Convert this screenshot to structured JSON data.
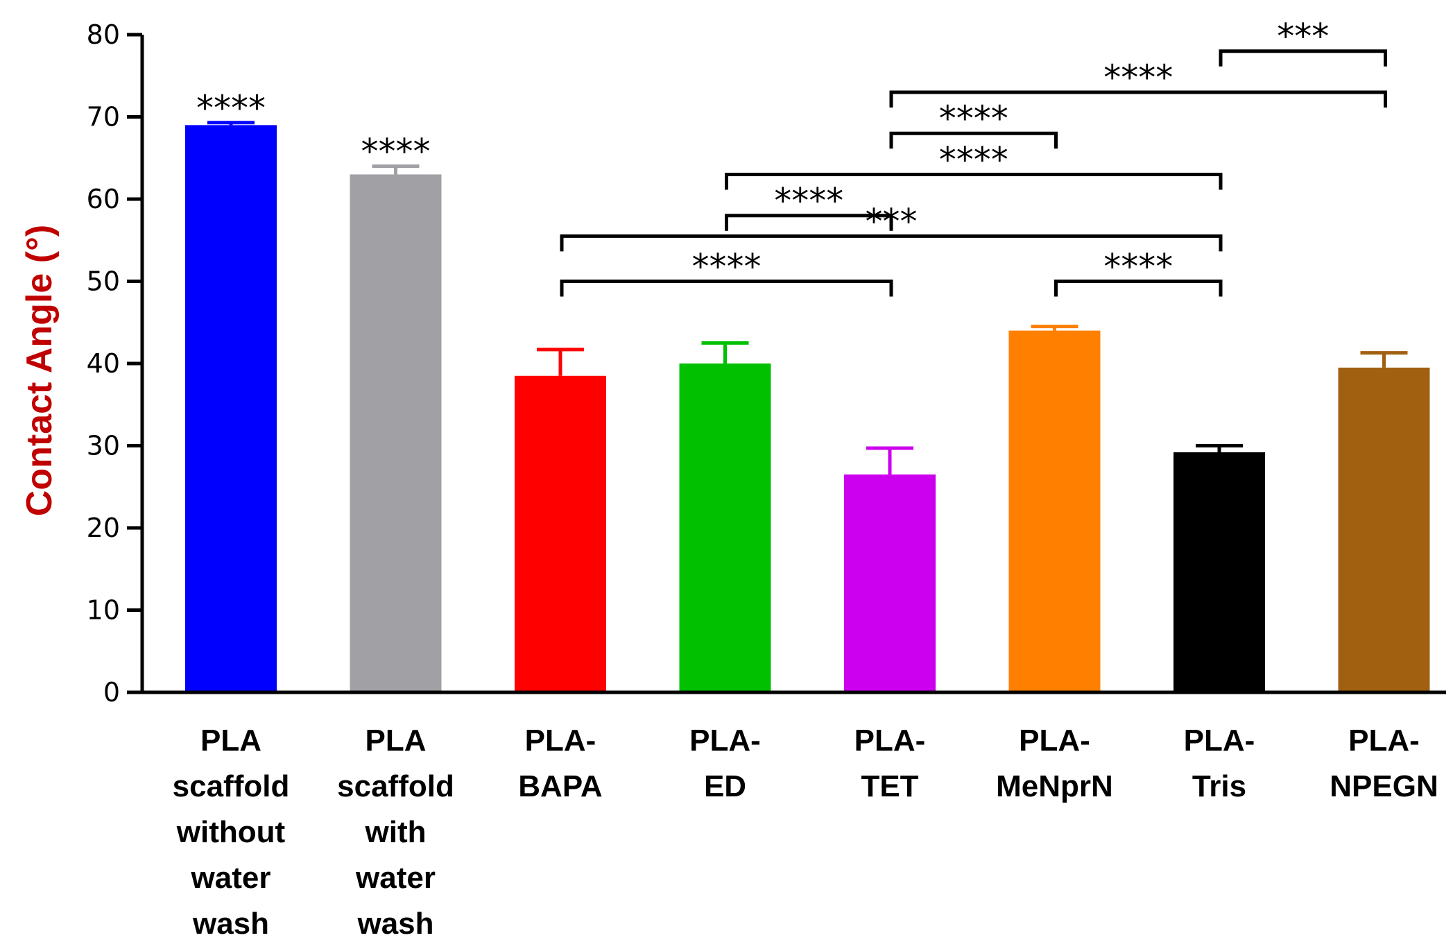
{
  "chart_data": {
    "type": "bar",
    "title": "",
    "xlabel": "",
    "ylabel": "Contact Angle (°)",
    "ylabel_color": "#c00000",
    "ylim": [
      0,
      80
    ],
    "yticks": [
      0,
      10,
      20,
      30,
      40,
      50,
      60,
      70,
      80
    ],
    "categories": [
      [
        "PLA",
        "scaffold",
        "without",
        "water",
        "wash"
      ],
      [
        "PLA",
        "scaffold",
        "with",
        "water",
        "wash"
      ],
      [
        "PLA-",
        "BAPA"
      ],
      [
        "PLA-",
        "ED"
      ],
      [
        "PLA-",
        "TET"
      ],
      [
        "PLA-",
        "MeNprN"
      ],
      [
        "PLA-",
        "Tris"
      ],
      [
        "PLA-",
        "NPEGN"
      ]
    ],
    "values": [
      69.0,
      63.0,
      38.5,
      40.0,
      26.5,
      44.0,
      29.2,
      39.5
    ],
    "errors": [
      0.3,
      1.0,
      3.2,
      2.5,
      3.2,
      0.5,
      0.8,
      1.8
    ],
    "colors": [
      "#0000ff",
      "#a0a0a5",
      "#ff0000",
      "#00c000",
      "#cc00ee",
      "#ff8000",
      "#000000",
      "#a06010"
    ],
    "bar_annotations": [
      {
        "bar": 0,
        "text": "****"
      },
      {
        "bar": 1,
        "text": "****"
      }
    ],
    "significance": [
      {
        "from": 2,
        "to": 4,
        "level": 50,
        "text": "****"
      },
      {
        "from": 5,
        "to": 6,
        "level": 50,
        "text": "****"
      },
      {
        "from": 2,
        "to": 6,
        "level": 55.5,
        "text": "***"
      },
      {
        "from": 3,
        "to": 4,
        "level": 58,
        "text": "****"
      },
      {
        "from": 3,
        "to": 6,
        "level": 63,
        "text": "****"
      },
      {
        "from": 4,
        "to": 5,
        "level": 68,
        "text": "****"
      },
      {
        "from": 4,
        "to": 7,
        "level": 73,
        "text": "****"
      },
      {
        "from": 6,
        "to": 7,
        "level": 78,
        "text": "***"
      }
    ]
  }
}
